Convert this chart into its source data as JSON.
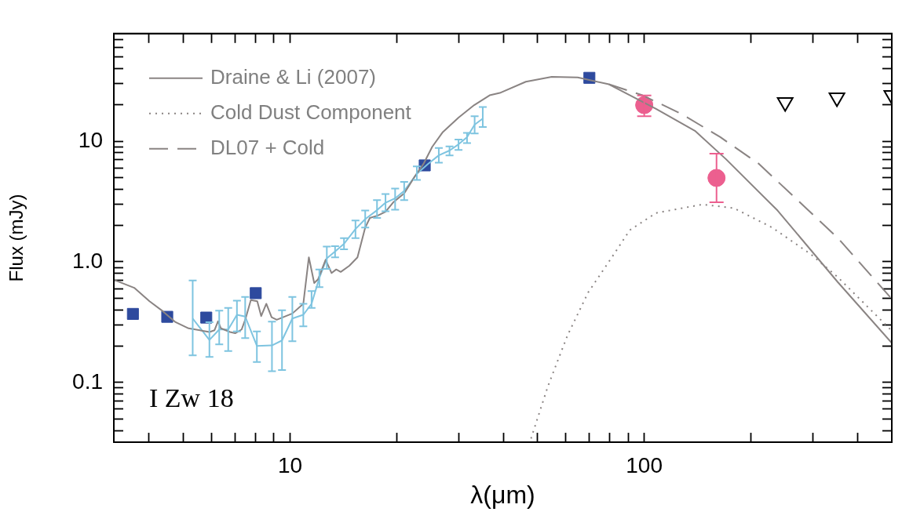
{
  "chart_data": {
    "type": "line",
    "xlabel": "λ(μm)",
    "ylabel": "Flux (mJy)",
    "log": "xy",
    "grid": false,
    "legend": "top left",
    "annotations": [
      "I Zw 18"
    ],
    "xlim": [
      3.18,
      500
    ],
    "ylim": [
      0.032,
      78
    ],
    "xticks": [
      {
        "value": 4,
        "label": null
      },
      {
        "value": 5,
        "label": null
      },
      {
        "value": 6,
        "label": null
      },
      {
        "value": 7,
        "label": null
      },
      {
        "value": 8,
        "label": null
      },
      {
        "value": 9,
        "label": null
      },
      10,
      {
        "value": 20,
        "label": null
      },
      {
        "value": 30,
        "label": null
      },
      {
        "value": 40,
        "label": null
      },
      {
        "value": 50,
        "label": null
      },
      {
        "value": 60,
        "label": null
      },
      {
        "value": 70,
        "label": null
      },
      {
        "value": 80,
        "label": null
      },
      {
        "value": 90,
        "label": null
      },
      100,
      {
        "value": 200,
        "label": null
      },
      {
        "value": 300,
        "label": null
      },
      {
        "value": 400,
        "label": null
      }
    ],
    "yticks": [
      {
        "value": 0.04,
        "label": null
      },
      {
        "value": 0.05,
        "label": null
      },
      {
        "value": 0.06,
        "label": null
      },
      {
        "value": 0.07,
        "label": null
      },
      {
        "value": 0.08,
        "label": null
      },
      {
        "value": 0.09,
        "label": null
      },
      0.1,
      {
        "value": 0.2,
        "label": null
      },
      {
        "value": 0.3,
        "label": null
      },
      {
        "value": 0.4,
        "label": null
      },
      {
        "value": 0.5,
        "label": null
      },
      {
        "value": 0.6,
        "label": null
      },
      {
        "value": 0.7,
        "label": null
      },
      {
        "value": 0.8,
        "label": null
      },
      {
        "value": 0.9,
        "label": null
      },
      {
        "value": 1,
        "label": "1.0"
      },
      {
        "value": 2,
        "label": null
      },
      {
        "value": 3,
        "label": null
      },
      {
        "value": 4,
        "label": null
      },
      {
        "value": 5,
        "label": null
      },
      {
        "value": 6,
        "label": null
      },
      {
        "value": 7,
        "label": null
      },
      {
        "value": 8,
        "label": null
      },
      {
        "value": 9,
        "label": null
      },
      10,
      {
        "value": 20,
        "label": null
      },
      {
        "value": 30,
        "label": null
      },
      {
        "value": 40,
        "label": null
      },
      {
        "value": 50,
        "label": null
      },
      {
        "value": 60,
        "label": null
      },
      {
        "value": 70,
        "label": null
      }
    ],
    "series": [
      {
        "name": "Draine & Li (2007)",
        "line_style": "solid",
        "marker": "none",
        "color": "#8a8483",
        "x": [
          3.2,
          3.63,
          4.01,
          4.37,
          4.75,
          5.17,
          5.92,
          6.12,
          6.26,
          6.38,
          6.77,
          7.0,
          7.3,
          7.49,
          7.75,
          8.08,
          8.29,
          8.57,
          8.87,
          9.17,
          10.15,
          10.9,
          11.3,
          11.7,
          12.0,
          12.6,
          13.1,
          13.5,
          13.9,
          14.7,
          15.5,
          16.3,
          16.8,
          17.7,
          18.6,
          19.6,
          21.0,
          22.4,
          23.8,
          25.2,
          27.0,
          29.9,
          33.1,
          36.6,
          39.1,
          46.3,
          54.8,
          64.9,
          79.5,
          108,
          139,
          170,
          238,
          351,
          500
        ],
        "values": [
          0.704,
          0.609,
          0.471,
          0.39,
          0.316,
          0.281,
          0.262,
          0.271,
          0.321,
          0.281,
          0.262,
          0.256,
          0.275,
          0.339,
          0.482,
          0.471,
          0.355,
          0.449,
          0.347,
          0.331,
          0.373,
          0.449,
          1.09,
          0.668,
          0.717,
          1.04,
          0.807,
          0.865,
          0.825,
          0.928,
          1.09,
          1.92,
          2.31,
          2.42,
          2.6,
          3.13,
          3.69,
          5.0,
          6.47,
          8.98,
          11.9,
          15.7,
          19.9,
          24.0,
          25.1,
          31.1,
          34.1,
          33.8,
          29.6,
          18.5,
          12.2,
          7.11,
          2.66,
          0.685,
          0.212
        ]
      },
      {
        "name": "Cold Dust Component",
        "line_style": "dotted",
        "marker": "none",
        "color": "#8a8483",
        "x": [
          47.9,
          53.5,
          60.7,
          69.4,
          82.8,
          91,
          108,
          146,
          179,
          230,
          296,
          351,
          500
        ],
        "values": [
          0.0343,
          0.0936,
          0.245,
          0.555,
          1.2,
          1.83,
          2.54,
          2.99,
          2.79,
          1.92,
          1.15,
          0.752,
          0.268
        ]
      },
      {
        "name": "DL07 + Cold",
        "line_style": "dashed",
        "marker": "none",
        "color": "#8a8483",
        "x": [
          79.5,
          98.9,
          127,
          164,
          211,
          272,
          351,
          500
        ],
        "values": [
          29.6,
          24.0,
          16.9,
          10.8,
          6.47,
          3.21,
          1.59,
          0.493
        ]
      },
      {
        "line_style": "solid",
        "marker": "none",
        "color": "#7ec4e0",
        "x": [
          5.31,
          5.92,
          6.31,
          6.69,
          7.08,
          7.47,
          8.06,
          8.89,
          9.49,
          10.15,
          10.9,
          11.5,
          12.1,
          12.7,
          13.4,
          14.2,
          15.3,
          16.3,
          17.6,
          18.6,
          19.8,
          21.0,
          22.8,
          24.5,
          26.3,
          28.2,
          29.9,
          31.6,
          33.2,
          35.0
        ],
        "values": [
          0.339,
          0.225,
          0.275,
          0.275,
          0.364,
          0.352,
          0.201,
          0.203,
          0.223,
          0.339,
          0.364,
          0.449,
          0.737,
          1.07,
          1.22,
          1.41,
          1.87,
          2.26,
          2.68,
          3.09,
          3.36,
          3.87,
          5.37,
          6.47,
          7.63,
          8.37,
          9.42,
          10.8,
          13.7,
          15.4
        ],
        "errors": [
          [
            0.168,
            0.701
          ],
          [
            0.163,
            0.316
          ],
          [
            0.207,
            0.394
          ],
          [
            0.182,
            0.415
          ],
          [
            0.265,
            0.477
          ],
          [
            0.233,
            0.512
          ],
          [
            0.148,
            0.265
          ],
          [
            0.124,
            0.319
          ],
          [
            0.127,
            0.396
          ],
          [
            0.22,
            0.512
          ],
          [
            0.292,
            0.449
          ],
          [
            0.415,
            0.573
          ],
          [
            0.618,
            0.865
          ],
          [
            0.873,
            1.34
          ],
          [
            1.09,
            1.35
          ],
          [
            1.27,
            1.57
          ],
          [
            1.57,
            2.2
          ],
          [
            1.92,
            2.66
          ],
          [
            2.31,
            3.25
          ],
          [
            2.62,
            3.64
          ],
          [
            2.7,
            4.05
          ],
          [
            3.25,
            4.6
          ],
          [
            4.77,
            6.18
          ],
          null,
          [
            6.63,
            8.77
          ],
          [
            7.63,
            9.06
          ],
          [
            8.45,
            10.3
          ],
          [
            9.63,
            11.7
          ],
          [
            11.6,
            16.1
          ],
          [
            13.1,
            19.2
          ]
        ]
      },
      {
        "type": "scatter",
        "marker": "square",
        "color": "#2e4a9e",
        "x": [
          3.6,
          4.5,
          5.8,
          8.0,
          24,
          70
        ],
        "values": [
          0.37,
          0.35,
          0.345,
          0.55,
          6.3,
          33.5
        ]
      },
      {
        "type": "scatter",
        "marker": "circle",
        "color": "#ec5f8f",
        "x": [
          100,
          160
        ],
        "values": [
          19.9,
          4.96
        ],
        "errors": [
          [
            16.1,
            23.9
          ],
          [
            3.12,
            7.87
          ]
        ]
      },
      {
        "type": "scatter",
        "marker": "triangle",
        "color": "#000000",
        "x": [
          250,
          350,
          500
        ],
        "values": [
          21,
          23,
          24
        ]
      }
    ]
  }
}
